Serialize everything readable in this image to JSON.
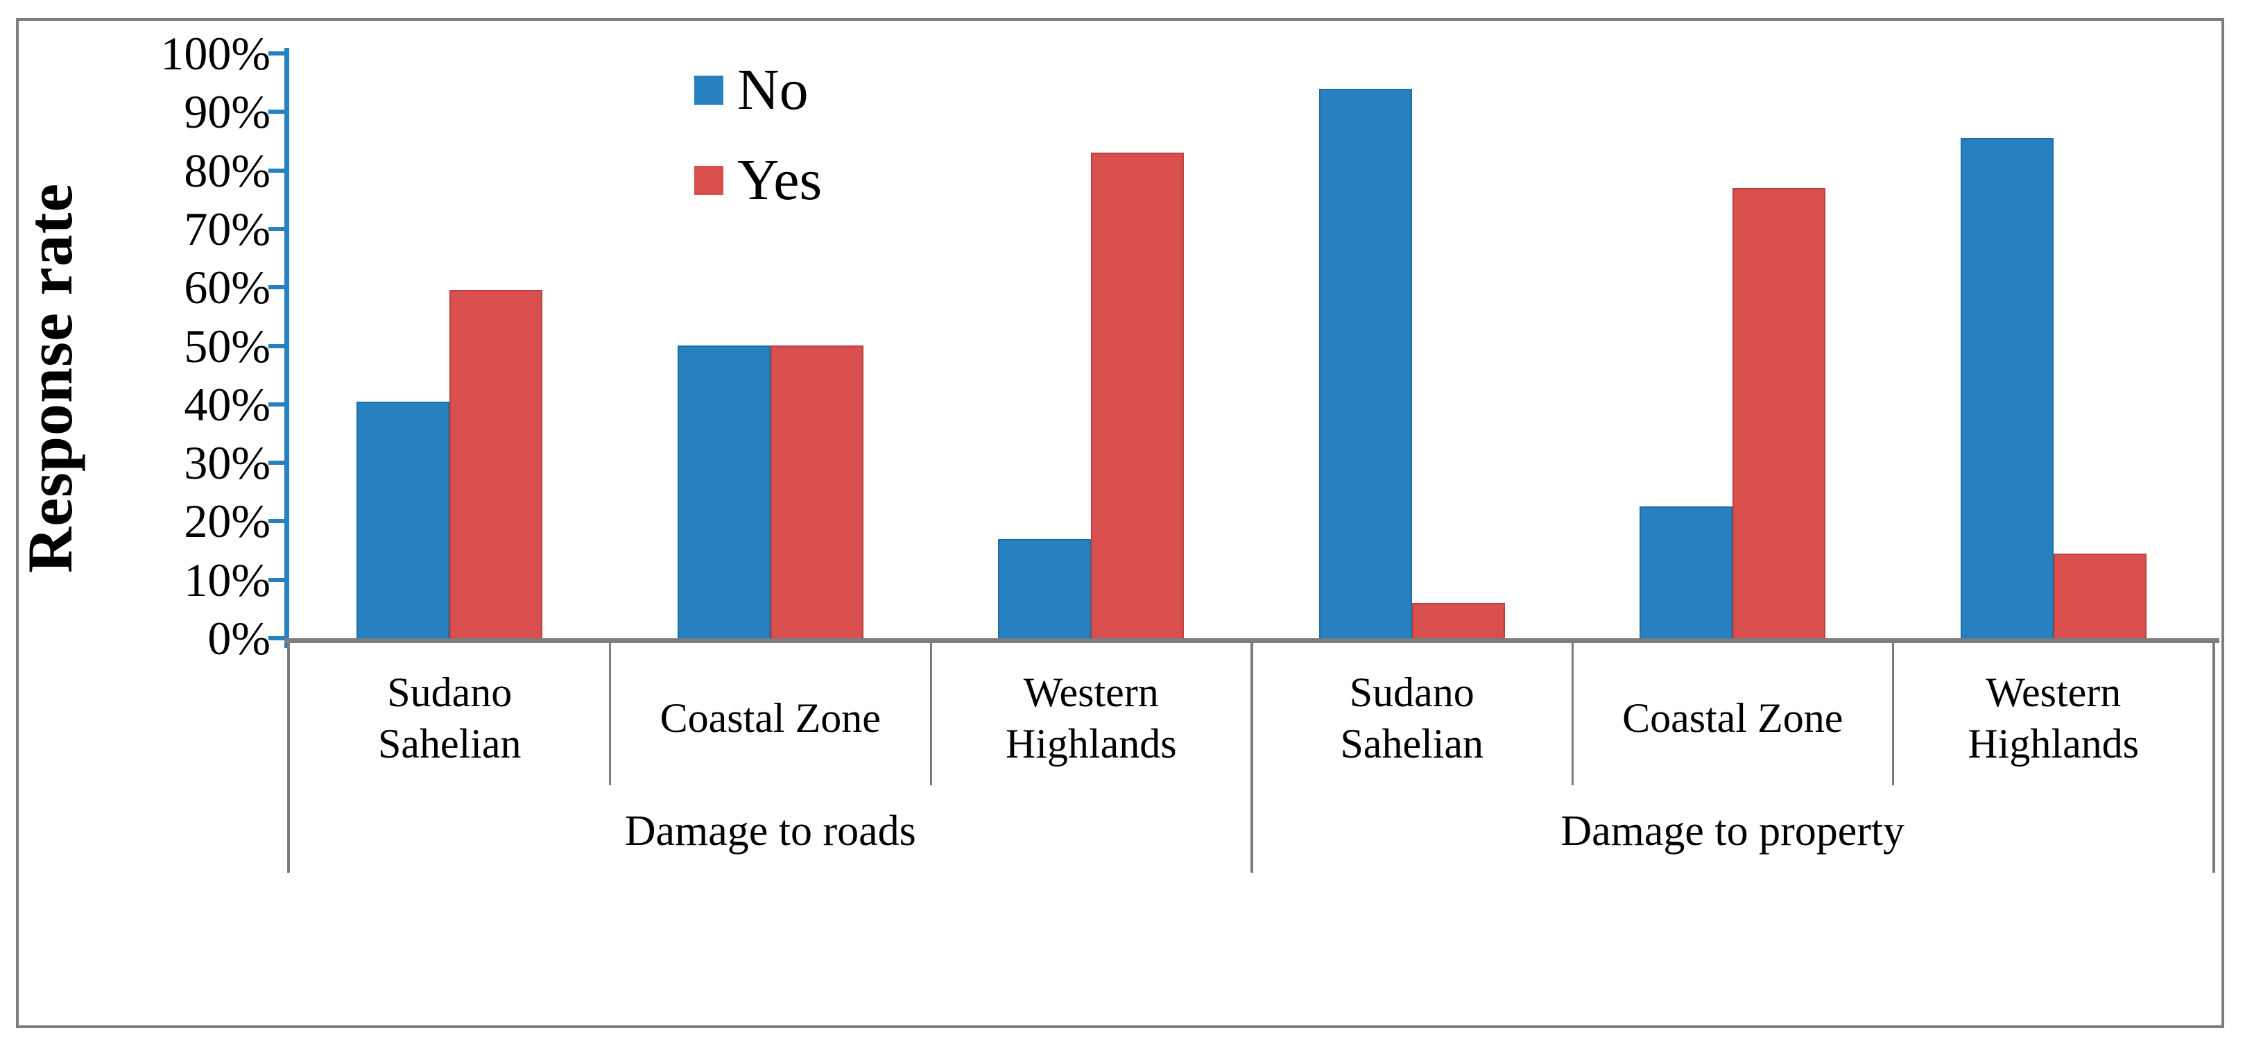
{
  "figure": {
    "background_color": "#ffffff",
    "border_color": "#7d7d7d"
  },
  "chart_data": {
    "type": "bar",
    "title": "",
    "ylabel": "Response rate",
    "xlabel": "",
    "grid": false,
    "y_axis": {
      "min": 0,
      "max": 100,
      "step": 10,
      "ticks": [
        "0%",
        "10%",
        "20%",
        "30%",
        "40%",
        "50%",
        "60%",
        "70%",
        "80%",
        "90%",
        "100%"
      ],
      "axis_color": "#2781c0"
    },
    "x_axis": {
      "line_color": "#7d7d7d",
      "groups": [
        {
          "label": "Damage to roads",
          "categories": [
            "Sudano Sahelian",
            "Coastal Zone",
            "Western Highlands"
          ]
        },
        {
          "label": "Damage to property",
          "categories": [
            "Sudano Sahelian",
            "Coastal Zone",
            "Western Highlands"
          ]
        }
      ]
    },
    "legend": {
      "position": "upper-left-inside-plot",
      "entries": [
        {
          "label": "No",
          "color": "#2781c0"
        },
        {
          "label": "Yes",
          "color": "#d94f4d"
        }
      ]
    },
    "series": [
      {
        "name": "No",
        "color": "#2781c0",
        "values": [
          40.5,
          50,
          17,
          94,
          22.5,
          85.5
        ]
      },
      {
        "name": "Yes",
        "color": "#d94f4d",
        "values": [
          59.5,
          50,
          83,
          6,
          77,
          14.5
        ]
      }
    ]
  }
}
